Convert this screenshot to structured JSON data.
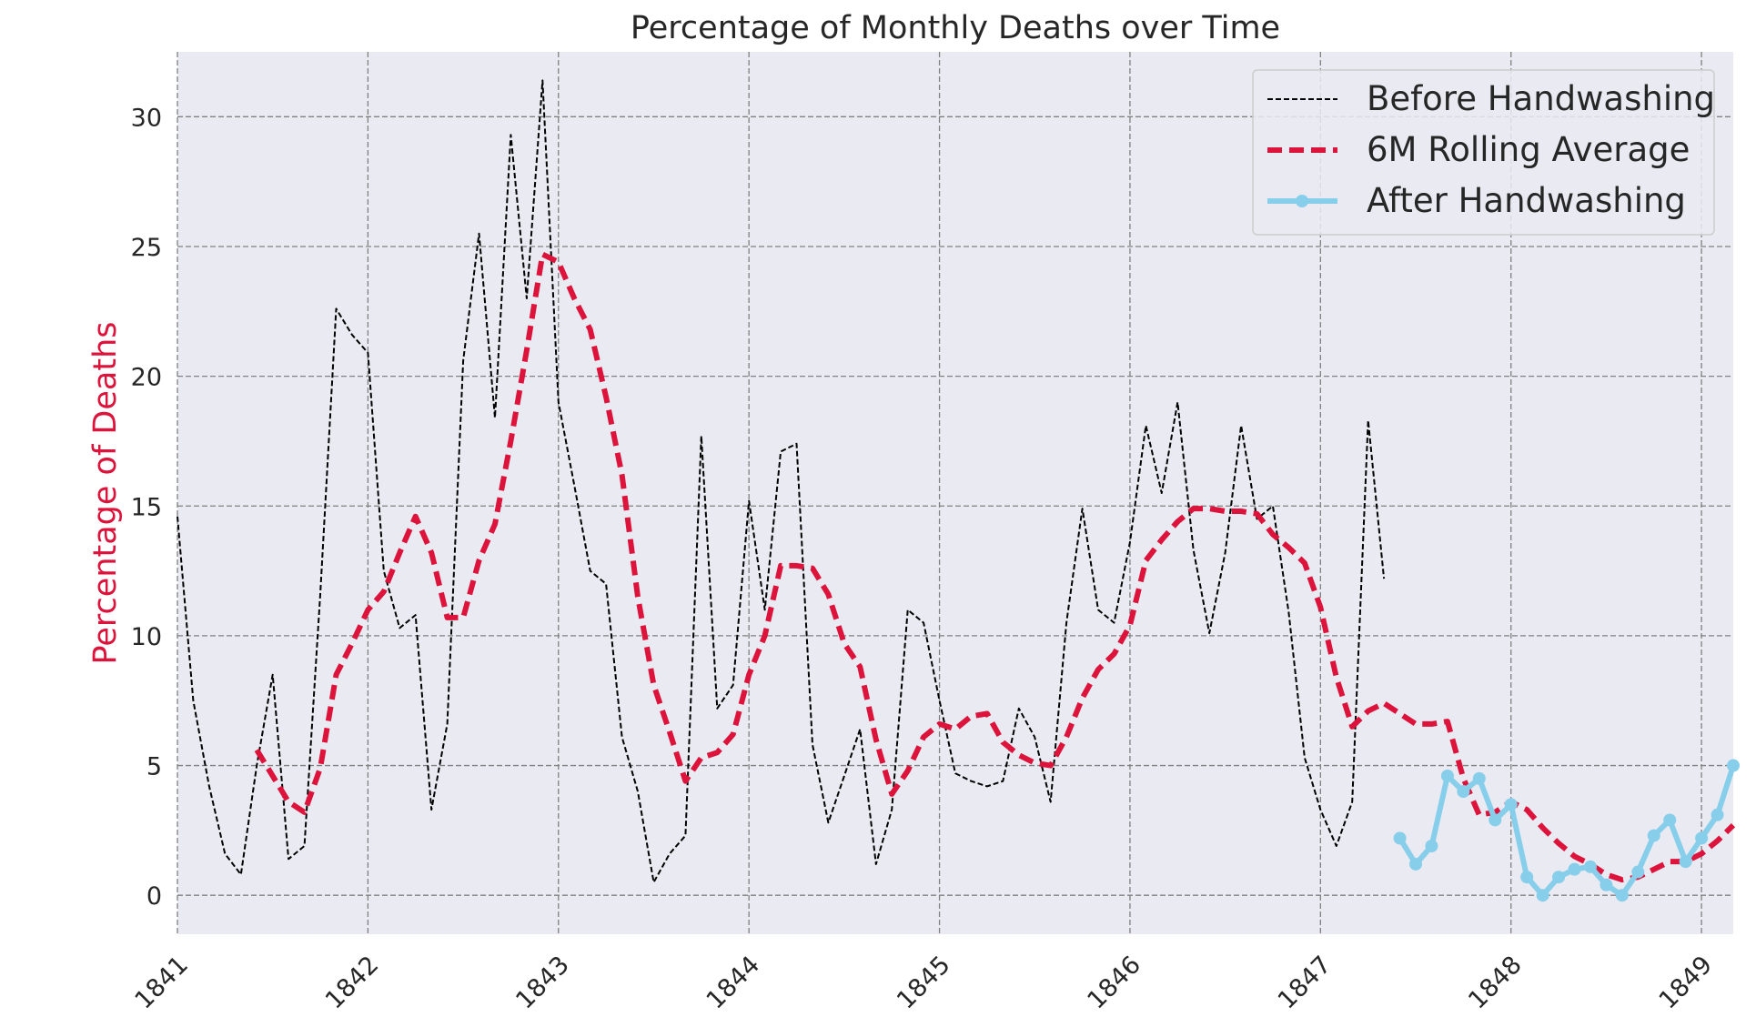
{
  "chart_data": {
    "type": "line",
    "title": "Percentage of Monthly Deaths over Time",
    "xlabel": "",
    "ylabel": "Percentage of Deaths",
    "ylabel_color": "#dc143c",
    "plot_background": "#eaeaf2",
    "grid": true,
    "grid_color": "#808080",
    "xlim": [
      "1841-01",
      "1849-03"
    ],
    "ylim": [
      -1.5,
      32.5
    ],
    "xticks": [
      "1841",
      "1842",
      "1843",
      "1844",
      "1845",
      "1846",
      "1847",
      "1848",
      "1849"
    ],
    "yticks": [
      0,
      5,
      10,
      15,
      20,
      25,
      30
    ],
    "legend": {
      "location": "upper right"
    },
    "series": [
      {
        "name": "Before Handwashing",
        "color": "#000000",
        "style": "dashed-thin",
        "points": [
          [
            "1841-01",
            14.6
          ],
          [
            "1841-02",
            7.5
          ],
          [
            "1841-03",
            4.2
          ],
          [
            "1841-04",
            1.6
          ],
          [
            "1841-05",
            0.8
          ],
          [
            "1841-06",
            5.0
          ],
          [
            "1841-07",
            8.5
          ],
          [
            "1841-08",
            1.4
          ],
          [
            "1841-09",
            1.9
          ],
          [
            "1841-10",
            11.6
          ],
          [
            "1841-11",
            22.6
          ],
          [
            "1841-12",
            21.6
          ],
          [
            "1842-01",
            20.9
          ],
          [
            "1842-02",
            12.5
          ],
          [
            "1842-03",
            10.3
          ],
          [
            "1842-04",
            10.8
          ],
          [
            "1842-05",
            3.3
          ],
          [
            "1842-06",
            6.6
          ],
          [
            "1842-07",
            20.6
          ],
          [
            "1842-08",
            25.5
          ],
          [
            "1842-09",
            18.4
          ],
          [
            "1842-10",
            29.3
          ],
          [
            "1842-11",
            23.0
          ],
          [
            "1842-12",
            31.4
          ],
          [
            "1843-01",
            19.0
          ],
          [
            "1843-02",
            15.8
          ],
          [
            "1843-03",
            12.5
          ],
          [
            "1843-04",
            12.0
          ],
          [
            "1843-05",
            6.1
          ],
          [
            "1843-06",
            4.0
          ],
          [
            "1843-07",
            0.5
          ],
          [
            "1843-08",
            1.6
          ],
          [
            "1843-09",
            2.3
          ],
          [
            "1843-10",
            17.7
          ],
          [
            "1843-11",
            7.2
          ],
          [
            "1843-12",
            8.1
          ],
          [
            "1844-01",
            15.2
          ],
          [
            "1844-02",
            11.0
          ],
          [
            "1844-03",
            17.1
          ],
          [
            "1844-04",
            17.4
          ],
          [
            "1844-05",
            5.8
          ],
          [
            "1844-06",
            2.8
          ],
          [
            "1844-07",
            4.6
          ],
          [
            "1844-08",
            6.4
          ],
          [
            "1844-09",
            1.2
          ],
          [
            "1844-10",
            3.3
          ],
          [
            "1844-11",
            11.0
          ],
          [
            "1844-12",
            10.5
          ],
          [
            "1845-01",
            7.5
          ],
          [
            "1845-02",
            4.7
          ],
          [
            "1845-03",
            4.4
          ],
          [
            "1845-04",
            4.2
          ],
          [
            "1845-05",
            4.4
          ],
          [
            "1845-06",
            7.2
          ],
          [
            "1845-07",
            6.1
          ],
          [
            "1845-08",
            3.6
          ],
          [
            "1845-09",
            10.5
          ],
          [
            "1845-10",
            14.9
          ],
          [
            "1845-11",
            11.0
          ],
          [
            "1845-12",
            10.5
          ],
          [
            "1846-01",
            13.6
          ],
          [
            "1846-02",
            18.1
          ],
          [
            "1846-03",
            15.5
          ],
          [
            "1846-04",
            19.0
          ],
          [
            "1846-05",
            13.3
          ],
          [
            "1846-06",
            10.1
          ],
          [
            "1846-07",
            13.2
          ],
          [
            "1846-08",
            18.1
          ],
          [
            "1846-09",
            14.5
          ],
          [
            "1846-10",
            15.0
          ],
          [
            "1846-11",
            10.9
          ],
          [
            "1846-12",
            5.3
          ],
          [
            "1847-01",
            3.3
          ],
          [
            "1847-02",
            1.9
          ],
          [
            "1847-03",
            3.6
          ],
          [
            "1847-04",
            18.3
          ],
          [
            "1847-05",
            12.2
          ]
        ]
      },
      {
        "name": "6M Rolling Average",
        "color": "#dc143c",
        "style": "dashed-thick",
        "points": [
          [
            "1841-06",
            5.6
          ],
          [
            "1841-07",
            4.6
          ],
          [
            "1841-08",
            3.6
          ],
          [
            "1841-09",
            3.2
          ],
          [
            "1841-10",
            4.9
          ],
          [
            "1841-11",
            8.5
          ],
          [
            "1841-12",
            9.7
          ],
          [
            "1842-01",
            11.0
          ],
          [
            "1842-02",
            11.7
          ],
          [
            "1842-03",
            13.2
          ],
          [
            "1842-04",
            14.6
          ],
          [
            "1842-05",
            13.2
          ],
          [
            "1842-06",
            10.7
          ],
          [
            "1842-07",
            10.7
          ],
          [
            "1842-08",
            12.9
          ],
          [
            "1842-09",
            14.3
          ],
          [
            "1842-10",
            17.5
          ],
          [
            "1842-11",
            21.0
          ],
          [
            "1842-12",
            24.7
          ],
          [
            "1843-01",
            24.4
          ],
          [
            "1843-02",
            23.0
          ],
          [
            "1843-03",
            21.8
          ],
          [
            "1843-04",
            19.2
          ],
          [
            "1843-05",
            16.2
          ],
          [
            "1843-06",
            11.5
          ],
          [
            "1843-07",
            8.1
          ],
          [
            "1843-08",
            6.3
          ],
          [
            "1843-09",
            4.4
          ],
          [
            "1843-10",
            5.3
          ],
          [
            "1843-11",
            5.5
          ],
          [
            "1843-12",
            6.2
          ],
          [
            "1844-01",
            8.5
          ],
          [
            "1844-02",
            10.0
          ],
          [
            "1844-03",
            12.7
          ],
          [
            "1844-04",
            12.7
          ],
          [
            "1844-05",
            12.6
          ],
          [
            "1844-06",
            11.6
          ],
          [
            "1844-07",
            9.7
          ],
          [
            "1844-08",
            8.8
          ],
          [
            "1844-09",
            6.0
          ],
          [
            "1844-10",
            3.9
          ],
          [
            "1844-11",
            4.8
          ],
          [
            "1844-12",
            6.1
          ],
          [
            "1845-01",
            6.6
          ],
          [
            "1845-02",
            6.4
          ],
          [
            "1845-03",
            6.9
          ],
          [
            "1845-04",
            7.0
          ],
          [
            "1845-05",
            5.9
          ],
          [
            "1845-06",
            5.4
          ],
          [
            "1845-07",
            5.1
          ],
          [
            "1845-08",
            5.0
          ],
          [
            "1845-09",
            6.1
          ],
          [
            "1845-10",
            7.6
          ],
          [
            "1845-11",
            8.7
          ],
          [
            "1845-12",
            9.3
          ],
          [
            "1846-01",
            10.4
          ],
          [
            "1846-02",
            12.9
          ],
          [
            "1846-03",
            13.7
          ],
          [
            "1846-04",
            14.4
          ],
          [
            "1846-05",
            14.9
          ],
          [
            "1846-06",
            14.9
          ],
          [
            "1846-07",
            14.8
          ],
          [
            "1846-08",
            14.8
          ],
          [
            "1846-09",
            14.7
          ],
          [
            "1846-10",
            13.9
          ],
          [
            "1846-11",
            13.4
          ],
          [
            "1846-12",
            12.8
          ],
          [
            "1847-01",
            11.1
          ],
          [
            "1847-02",
            8.4
          ],
          [
            "1847-03",
            6.5
          ],
          [
            "1847-04",
            7.1
          ],
          [
            "1847-05",
            7.4
          ],
          [
            "1847-06",
            7.0
          ],
          [
            "1847-07",
            6.6
          ],
          [
            "1847-08",
            6.6
          ],
          [
            "1847-09",
            6.7
          ],
          [
            "1847-10",
            4.5
          ],
          [
            "1847-11",
            3.1
          ],
          [
            "1847-12",
            3.2
          ],
          [
            "1848-01",
            3.6
          ],
          [
            "1848-02",
            3.3
          ],
          [
            "1848-03",
            2.6
          ],
          [
            "1848-04",
            2.0
          ],
          [
            "1848-05",
            1.5
          ],
          [
            "1848-06",
            1.2
          ],
          [
            "1848-07",
            0.8
          ],
          [
            "1848-08",
            0.6
          ],
          [
            "1848-09",
            0.7
          ],
          [
            "1848-10",
            1.0
          ],
          [
            "1848-11",
            1.3
          ],
          [
            "1848-12",
            1.3
          ],
          [
            "1849-01",
            1.6
          ],
          [
            "1849-02",
            2.1
          ],
          [
            "1849-03",
            2.7
          ]
        ]
      },
      {
        "name": "After Handwashing",
        "color": "#87ceeb",
        "style": "solid-markers",
        "points": [
          [
            "1847-06",
            2.2
          ],
          [
            "1847-07",
            1.2
          ],
          [
            "1847-08",
            1.9
          ],
          [
            "1847-09",
            4.6
          ],
          [
            "1847-10",
            4.0
          ],
          [
            "1847-11",
            4.5
          ],
          [
            "1847-12",
            2.9
          ],
          [
            "1848-01",
            3.5
          ],
          [
            "1848-02",
            0.7
          ],
          [
            "1848-03",
            0.0
          ],
          [
            "1848-04",
            0.7
          ],
          [
            "1848-05",
            1.0
          ],
          [
            "1848-06",
            1.1
          ],
          [
            "1848-07",
            0.4
          ],
          [
            "1848-08",
            0.0
          ],
          [
            "1848-09",
            0.9
          ],
          [
            "1848-10",
            2.3
          ],
          [
            "1848-11",
            2.9
          ],
          [
            "1848-12",
            1.3
          ],
          [
            "1849-01",
            2.2
          ],
          [
            "1849-02",
            3.1
          ],
          [
            "1849-03",
            5.0
          ]
        ]
      }
    ]
  }
}
